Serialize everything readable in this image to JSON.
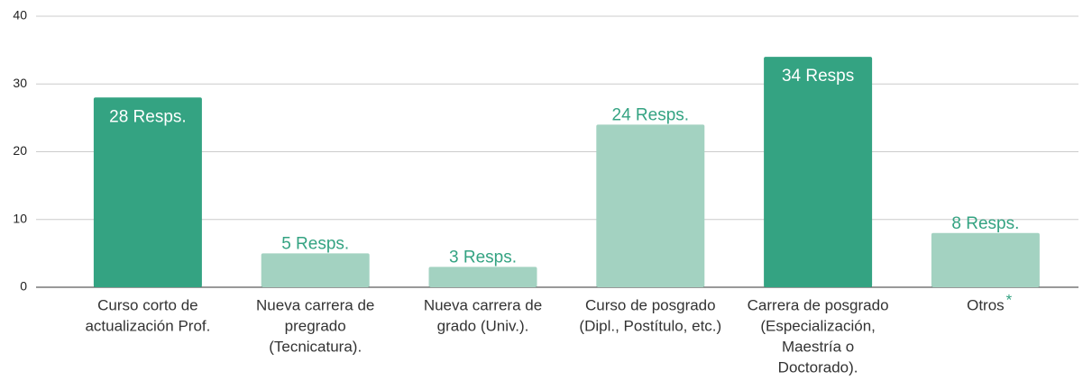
{
  "chart_data": {
    "type": "bar",
    "categories": [
      [
        "Curso corto de",
        "actualización Prof."
      ],
      [
        "Nueva carrera de",
        "pregrado",
        "(Tecnicatura)."
      ],
      [
        "Nueva carrera de",
        "grado (Univ.)."
      ],
      [
        "Curso de posgrado",
        "(Dipl., Postítulo, etc.)"
      ],
      [
        "Carrera de posgrado",
        "(Especialización,",
        "Maestría o",
        "Doctorado)."
      ],
      [
        "Otros"
      ]
    ],
    "values": [
      28,
      5,
      3,
      24,
      34,
      8
    ],
    "value_labels": [
      "28 Resps.",
      "5 Resps.",
      "3 Resps.",
      "24 Resps.",
      "34 Resps",
      "8 Resps."
    ],
    "colors": [
      "#34a382",
      "#a3d2c1",
      "#a3d2c1",
      "#a3d2c1",
      "#34a382",
      "#a3d2c1"
    ],
    "label_colors": [
      "#ffffff",
      "#34a382",
      "#34a382",
      "#34a382",
      "#ffffff",
      "#34a382"
    ],
    "annotation": "*",
    "annotation_color": "#34a382",
    "ylim": [
      0,
      40
    ],
    "yticks": [
      0,
      10,
      20,
      30,
      40
    ],
    "grid": true
  }
}
